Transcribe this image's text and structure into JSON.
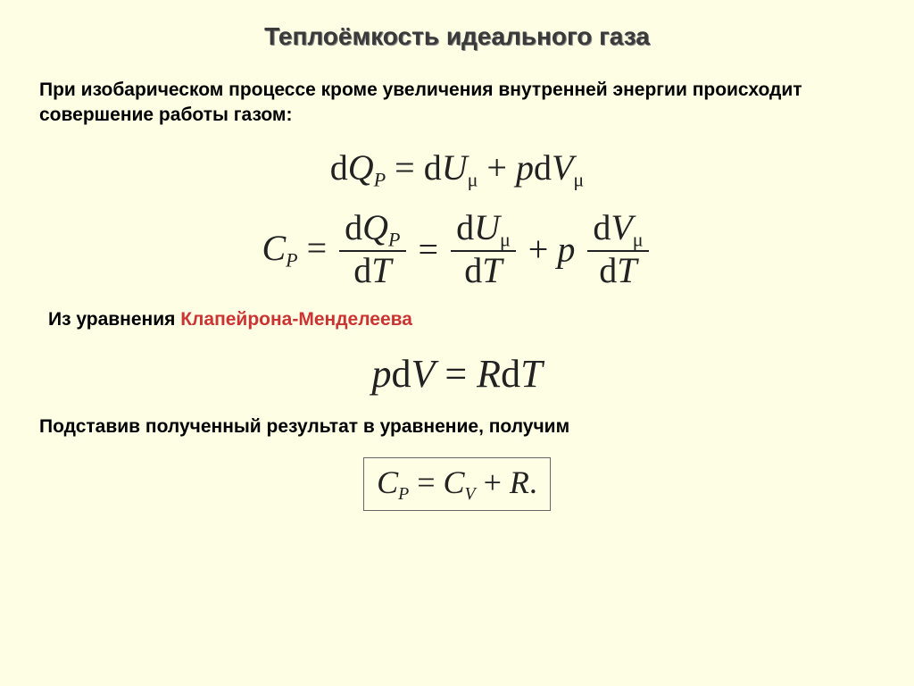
{
  "title": "Теплоёмкость идеального газа",
  "para1": "При изобарическом процессе кроме увеличения внутренней энергии происходит совершение работы газом:",
  "para2_prefix": "Из уравнения ",
  "para2_highlight": "Клапейрона-Менделеева",
  "para3": "Подставив полученный результат в уравнение, получим",
  "symbols": {
    "d": "d",
    "Q": "Q",
    "U": "U",
    "V": "V",
    "T": "T",
    "C": "C",
    "p": "p",
    "R": "R",
    "P": "P",
    "mu": "μ",
    "eq": " = ",
    "plus": " + ",
    "period": "."
  },
  "colors": {
    "background": "#fefee4",
    "text": "#000000",
    "title": "#3a3a3a",
    "formula": "#222222",
    "highlight": "#cc3333",
    "box_border": "#666666"
  },
  "fonts": {
    "body_family": "Verdana",
    "formula_family": "Times New Roman",
    "title_size_pt": 21,
    "para_size_pt": 16,
    "formula_size_pt": 30
  }
}
